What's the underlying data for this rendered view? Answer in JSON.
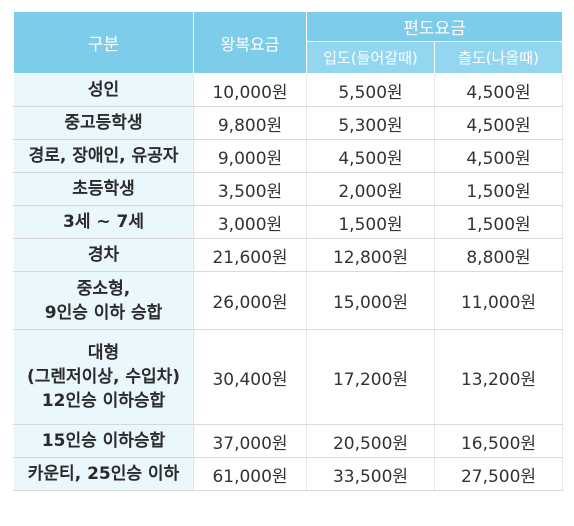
{
  "header": {
    "category": "구분",
    "round_trip": "왕복요금",
    "one_way": "편도요금",
    "inbound": "입도(들어갈때)",
    "outbound": "출도(나올때)"
  },
  "rows": [
    {
      "label": [
        "성인"
      ],
      "round_trip": "10,000원",
      "inbound": "5,500원",
      "outbound": "4,500원"
    },
    {
      "label": [
        "중고등학생"
      ],
      "round_trip": "9,800원",
      "inbound": "5,300원",
      "outbound": "4,500원"
    },
    {
      "label": [
        "경로, 장애인, 유공자"
      ],
      "round_trip": "9,000원",
      "inbound": "4,500원",
      "outbound": "4,500원"
    },
    {
      "label": [
        "초등학생"
      ],
      "round_trip": "3,500원",
      "inbound": "2,000원",
      "outbound": "1,500원"
    },
    {
      "label": [
        "3세 ~ 7세"
      ],
      "round_trip": "3,000원",
      "inbound": "1,500원",
      "outbound": "1,500원"
    },
    {
      "label": [
        "경차"
      ],
      "round_trip": "21,600원",
      "inbound": "12,800원",
      "outbound": "8,800원"
    },
    {
      "label": [
        "중소형,",
        "9인승 이하 승합"
      ],
      "round_trip": "26,000원",
      "inbound": "15,000원",
      "outbound": "11,000원"
    },
    {
      "label": [
        "대형",
        "(그렌저이상, 수입차)",
        "12인승 이하승합"
      ],
      "round_trip": "30,400원",
      "inbound": "17,200원",
      "outbound": "13,200원"
    },
    {
      "label": [
        "15인승 이하승합"
      ],
      "round_trip": "37,000원",
      "inbound": "20,500원",
      "outbound": "16,500원"
    },
    {
      "label": [
        "카운티, 25인승 이하"
      ],
      "round_trip": "61,000원",
      "inbound": "33,500원",
      "outbound": "27,500원"
    }
  ]
}
